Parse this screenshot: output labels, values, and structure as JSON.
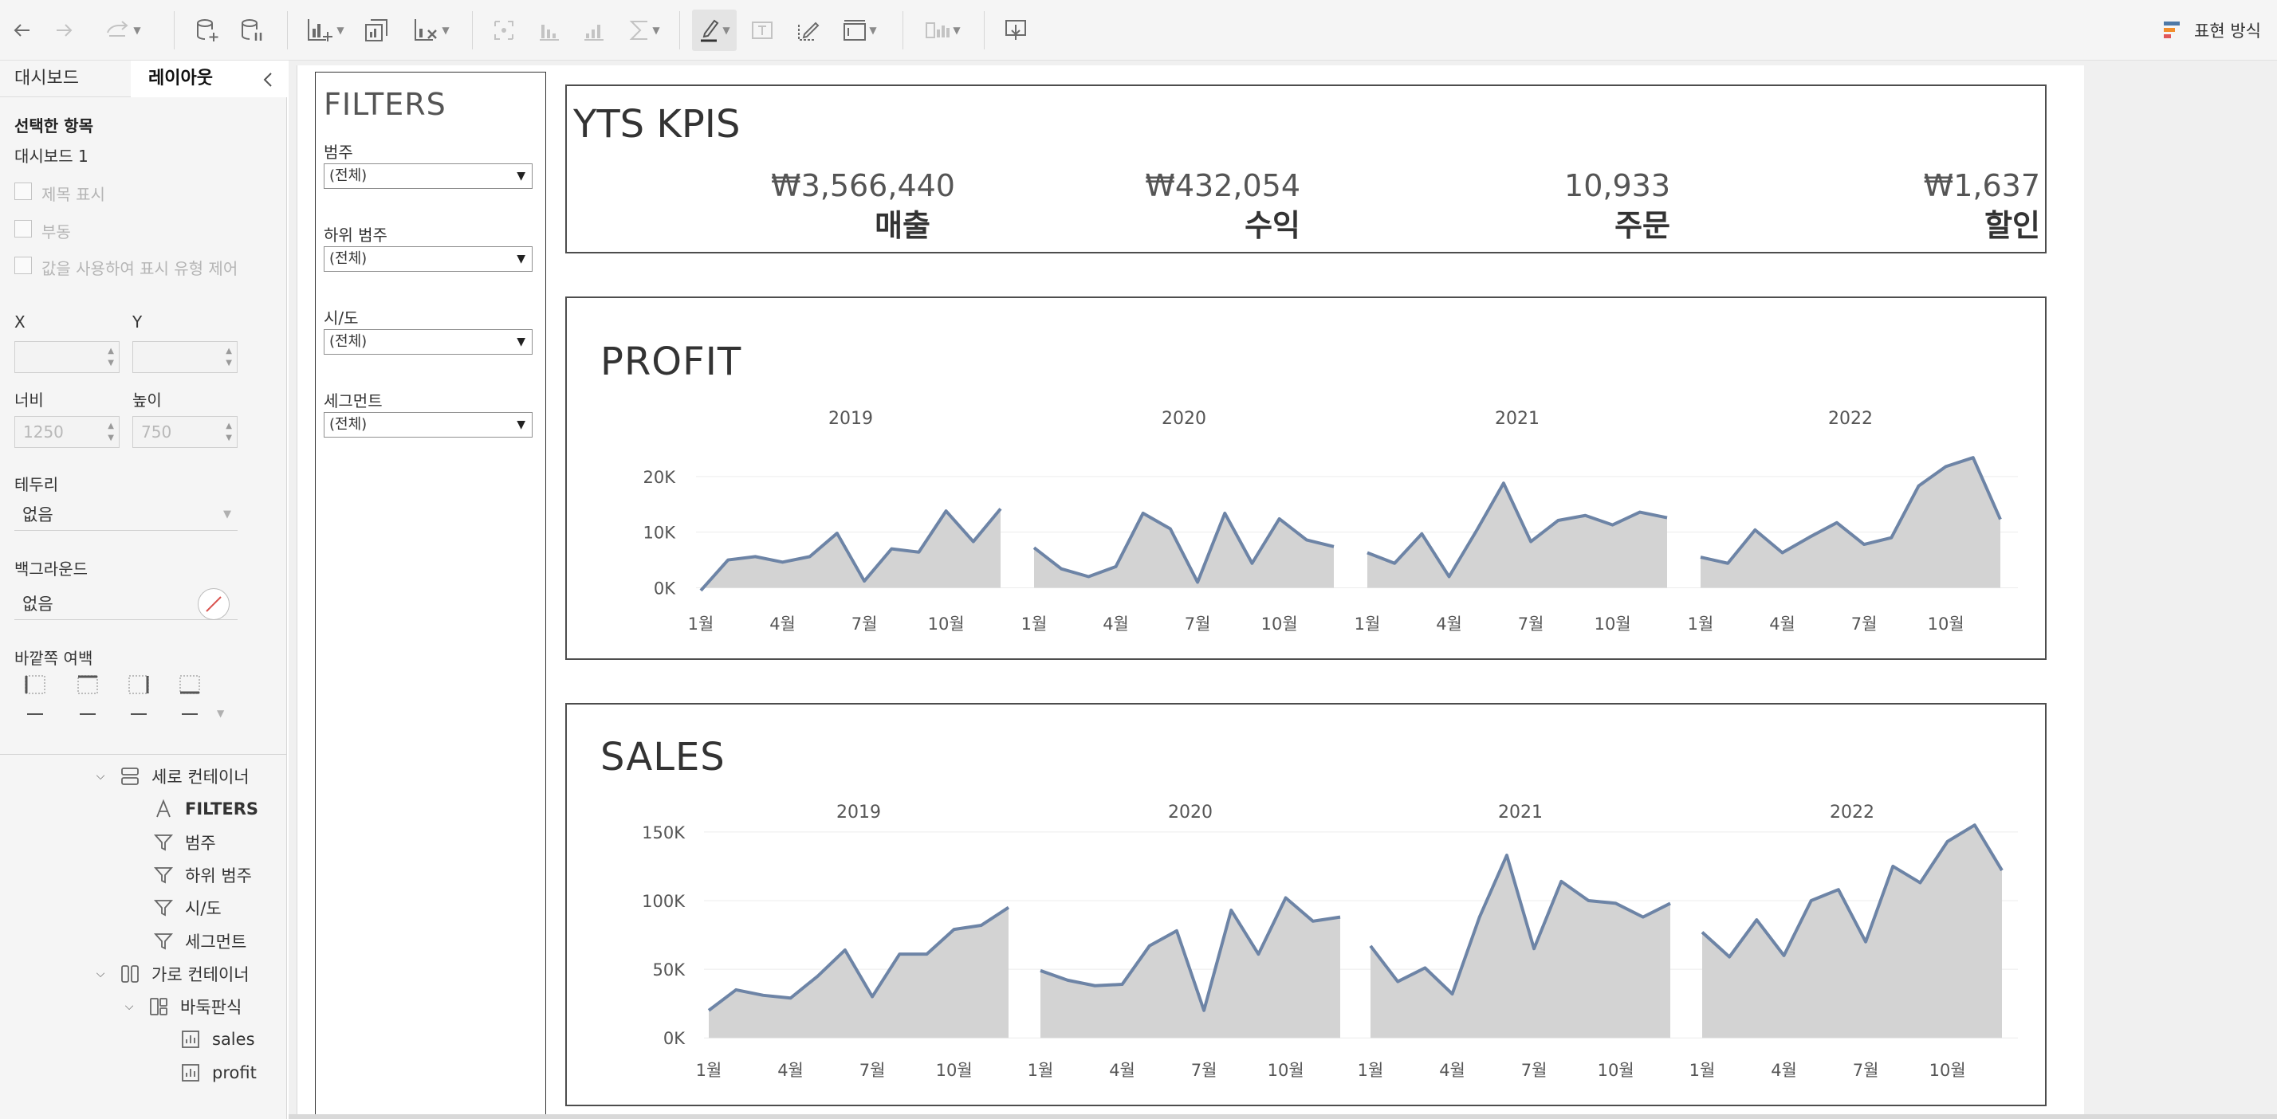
{
  "toolbar": {
    "buttons": [
      {
        "name": "back-arrow-icon",
        "enabled": true
      },
      {
        "name": "forward-arrow-icon",
        "enabled": false
      },
      {
        "name": "redo-icon",
        "enabled": false
      },
      {
        "name": "add-datasource-icon",
        "enabled": true
      },
      {
        "name": "pause-updates-icon",
        "enabled": true
      },
      {
        "name": "new-worksheet-icon",
        "enabled": true
      },
      {
        "name": "duplicate-sheet-icon",
        "enabled": true
      },
      {
        "name": "clear-sheet-icon",
        "enabled": true
      },
      {
        "name": "swap-icon",
        "enabled": false
      },
      {
        "name": "sort-asc-icon",
        "enabled": false
      },
      {
        "name": "sort-desc-icon",
        "enabled": false
      },
      {
        "name": "totals-icon",
        "enabled": false
      },
      {
        "name": "highlight-icon",
        "enabled": true
      },
      {
        "name": "text-label-icon",
        "enabled": false
      },
      {
        "name": "annotate-icon",
        "enabled": true
      },
      {
        "name": "fit-icon",
        "enabled": true
      },
      {
        "name": "show-me-cards-icon",
        "enabled": false
      },
      {
        "name": "present-icon",
        "enabled": true
      }
    ],
    "show_me_label": "표현 방식"
  },
  "left_panel": {
    "tabs": [
      "대시보드",
      "레이아웃"
    ],
    "active_tab": "레이아웃",
    "selected_heading": "선택한 항목",
    "selected_value": "대시보드 1",
    "checkboxes": [
      "제목 표시",
      "부동",
      "값을 사용하여 표시 유형 제어"
    ],
    "x_label": "X",
    "y_label": "Y",
    "width_label": "너비",
    "height_label": "높이",
    "width_value": "1250",
    "height_value": "750",
    "border_label": "테두리",
    "border_value": "없음",
    "background_label": "백그라운드",
    "background_value": "없음",
    "outer_padding_label": "바깥쪽 여백",
    "tree": [
      {
        "label": "세로 컨테이너",
        "icon": "vertical-container-icon",
        "indent": 0,
        "expanded": true
      },
      {
        "label": "FILTERS",
        "icon": "text-object-icon",
        "indent": 1,
        "bold": true
      },
      {
        "label": "범주",
        "icon": "filter-icon",
        "indent": 1
      },
      {
        "label": "하위 범주",
        "icon": "filter-icon",
        "indent": 1
      },
      {
        "label": "시/도",
        "icon": "filter-icon",
        "indent": 1
      },
      {
        "label": "세그먼트",
        "icon": "filter-icon",
        "indent": 1
      },
      {
        "label": "가로 컨테이너",
        "icon": "horizontal-container-icon",
        "indent": 0,
        "expanded": true
      },
      {
        "label": "바둑판식",
        "icon": "tiled-icon",
        "indent": 1,
        "expanded": true
      },
      {
        "label": "sales",
        "icon": "sheet-icon",
        "indent": 2
      },
      {
        "label": "profit",
        "icon": "sheet-icon",
        "indent": 2
      }
    ]
  },
  "filters": {
    "title": "FILTERS",
    "items": [
      {
        "label": "범주",
        "value": "(전체)"
      },
      {
        "label": "하위 범주",
        "value": "(전체)"
      },
      {
        "label": "시/도",
        "value": "(전체)"
      },
      {
        "label": "세그먼트",
        "value": "(전체)"
      }
    ]
  },
  "kpis": {
    "title": "YTS KPIS",
    "items": [
      {
        "value": "₩3,566,440",
        "label": "매출"
      },
      {
        "value": "₩432,054",
        "label": "수익"
      },
      {
        "value": "10,933",
        "label": "주문"
      },
      {
        "value": "₩1,637",
        "label": "할인"
      }
    ]
  },
  "chart_data": [
    {
      "type": "area",
      "title": "PROFIT",
      "panels": [
        "2019",
        "2020",
        "2021",
        "2022"
      ],
      "x_ticks": [
        "1월",
        "4월",
        "7월",
        "10월"
      ],
      "months": [
        1,
        2,
        3,
        4,
        5,
        6,
        7,
        8,
        9,
        10,
        11,
        12
      ],
      "y_ticks": [
        {
          "value": 0,
          "label": "0K"
        },
        {
          "value": 10000,
          "label": "10K"
        },
        {
          "value": 20000,
          "label": "20K"
        }
      ],
      "ylim": [
        -1800,
        24000
      ],
      "series": [
        {
          "name": "2019",
          "values": [
            -500,
            5000,
            5600,
            4600,
            5600,
            9800,
            1200,
            7000,
            6400,
            13800,
            8300,
            14200
          ]
        },
        {
          "name": "2020",
          "values": [
            7200,
            3400,
            2000,
            3800,
            13400,
            10600,
            1000,
            13400,
            4400,
            12400,
            8600,
            7400
          ]
        },
        {
          "name": "2021",
          "values": [
            6300,
            4400,
            9700,
            2000,
            10200,
            18800,
            8300,
            12100,
            13000,
            11300,
            13600,
            12600
          ]
        },
        {
          "name": "2022",
          "values": [
            5500,
            4400,
            10400,
            6300,
            9100,
            11700,
            7800,
            9000,
            18300,
            21800,
            23400,
            12300
          ]
        }
      ],
      "color_line": "#6d84a6",
      "color_fill": "#d3d3d3"
    },
    {
      "type": "area",
      "title": "SALES",
      "panels": [
        "2019",
        "2020",
        "2021",
        "2022"
      ],
      "x_ticks": [
        "1월",
        "4월",
        "7월",
        "10월"
      ],
      "months": [
        1,
        2,
        3,
        4,
        5,
        6,
        7,
        8,
        9,
        10,
        11,
        12
      ],
      "y_ticks": [
        {
          "value": 0,
          "label": "0K"
        },
        {
          "value": 50000,
          "label": "50K"
        },
        {
          "value": 100000,
          "label": "100K"
        },
        {
          "value": 150000,
          "label": "150K"
        }
      ],
      "ylim": [
        -8000,
        165000
      ],
      "series": [
        {
          "name": "2019",
          "values": [
            20000,
            35000,
            31000,
            29000,
            45000,
            64000,
            30000,
            61000,
            61000,
            79000,
            82000,
            95000
          ]
        },
        {
          "name": "2020",
          "values": [
            49000,
            42000,
            38000,
            39000,
            67000,
            78000,
            20000,
            93000,
            61000,
            102000,
            85000,
            88000
          ]
        },
        {
          "name": "2021",
          "values": [
            67000,
            41000,
            51000,
            32000,
            88000,
            133000,
            65000,
            114000,
            100000,
            98000,
            88000,
            98000
          ]
        },
        {
          "name": "2022",
          "values": [
            77000,
            59000,
            86000,
            60000,
            100000,
            108000,
            70000,
            125000,
            113000,
            143000,
            155000,
            122000
          ]
        }
      ],
      "color_line": "#6d84a6",
      "color_fill": "#d3d3d3"
    }
  ]
}
